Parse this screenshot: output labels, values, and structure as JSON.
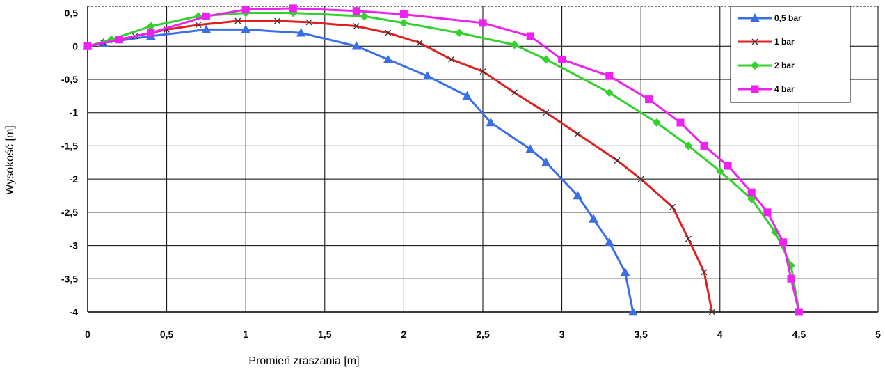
{
  "chart_data": {
    "type": "line",
    "xlabel": "Promień zraszania [m]",
    "ylabel": "Wysokość [m]",
    "xlim": [
      0,
      5
    ],
    "ylim": [
      -4,
      0.6
    ],
    "x_ticks": [
      "0",
      "0,5",
      "1",
      "1,5",
      "2",
      "2,5",
      "3",
      "3,5",
      "4",
      "4,5",
      "5"
    ],
    "y_ticks": [
      "0,5",
      "0",
      "-0,5",
      "-1",
      "-1,5",
      "-2",
      "-2,5",
      "-3",
      "-3,5",
      "-4"
    ],
    "grid": true,
    "legend_position": "top-right",
    "series": [
      {
        "name": "0,5 bar",
        "color": "#3B6FE8",
        "marker": "triangle",
        "x": [
          0,
          0.1,
          0.4,
          0.75,
          1.0,
          1.35,
          1.7,
          1.9,
          2.15,
          2.4,
          2.55,
          2.8,
          2.9,
          3.1,
          3.2,
          3.3,
          3.4,
          3.45
        ],
        "y": [
          0,
          0.05,
          0.15,
          0.25,
          0.25,
          0.2,
          0.0,
          -0.2,
          -0.45,
          -0.75,
          -1.15,
          -1.55,
          -1.75,
          -2.25,
          -2.6,
          -2.95,
          -3.4,
          -4.0
        ]
      },
      {
        "name": "1 bar",
        "color": "#E02020",
        "marker": "x",
        "x": [
          0,
          0.1,
          0.3,
          0.5,
          0.7,
          0.95,
          1.2,
          1.4,
          1.7,
          1.9,
          2.1,
          2.3,
          2.5,
          2.7,
          2.9,
          3.1,
          3.35,
          3.5,
          3.7,
          3.8,
          3.9,
          3.95
        ],
        "y": [
          0,
          0.05,
          0.15,
          0.25,
          0.32,
          0.38,
          0.38,
          0.36,
          0.3,
          0.2,
          0.05,
          -0.2,
          -0.38,
          -0.7,
          -1.0,
          -1.32,
          -1.72,
          -2.0,
          -2.42,
          -2.9,
          -3.4,
          -4.0
        ]
      },
      {
        "name": "2 bar",
        "color": "#33D12B",
        "marker": "diamond",
        "x": [
          0,
          0.15,
          0.4,
          0.7,
          1.0,
          1.3,
          1.75,
          2.0,
          2.35,
          2.7,
          2.9,
          3.3,
          3.6,
          3.8,
          4.0,
          4.2,
          4.35,
          4.45,
          4.5
        ],
        "y": [
          0,
          0.1,
          0.3,
          0.45,
          0.5,
          0.5,
          0.45,
          0.35,
          0.2,
          0.02,
          -0.2,
          -0.7,
          -1.15,
          -1.5,
          -1.88,
          -2.3,
          -2.8,
          -3.3,
          -4.0
        ]
      },
      {
        "name": "4 bar",
        "color": "#EE22EE",
        "marker": "square",
        "x": [
          0,
          0.2,
          0.4,
          0.75,
          1.0,
          1.3,
          1.7,
          2.0,
          2.5,
          2.8,
          3.0,
          3.3,
          3.55,
          3.75,
          3.9,
          4.05,
          4.2,
          4.3,
          4.4,
          4.45,
          4.5
        ],
        "y": [
          0,
          0.1,
          0.2,
          0.45,
          0.55,
          0.57,
          0.53,
          0.48,
          0.35,
          0.15,
          -0.2,
          -0.45,
          -0.8,
          -1.15,
          -1.5,
          -1.8,
          -2.2,
          -2.5,
          -2.95,
          -3.5,
          -4.0
        ]
      }
    ]
  }
}
